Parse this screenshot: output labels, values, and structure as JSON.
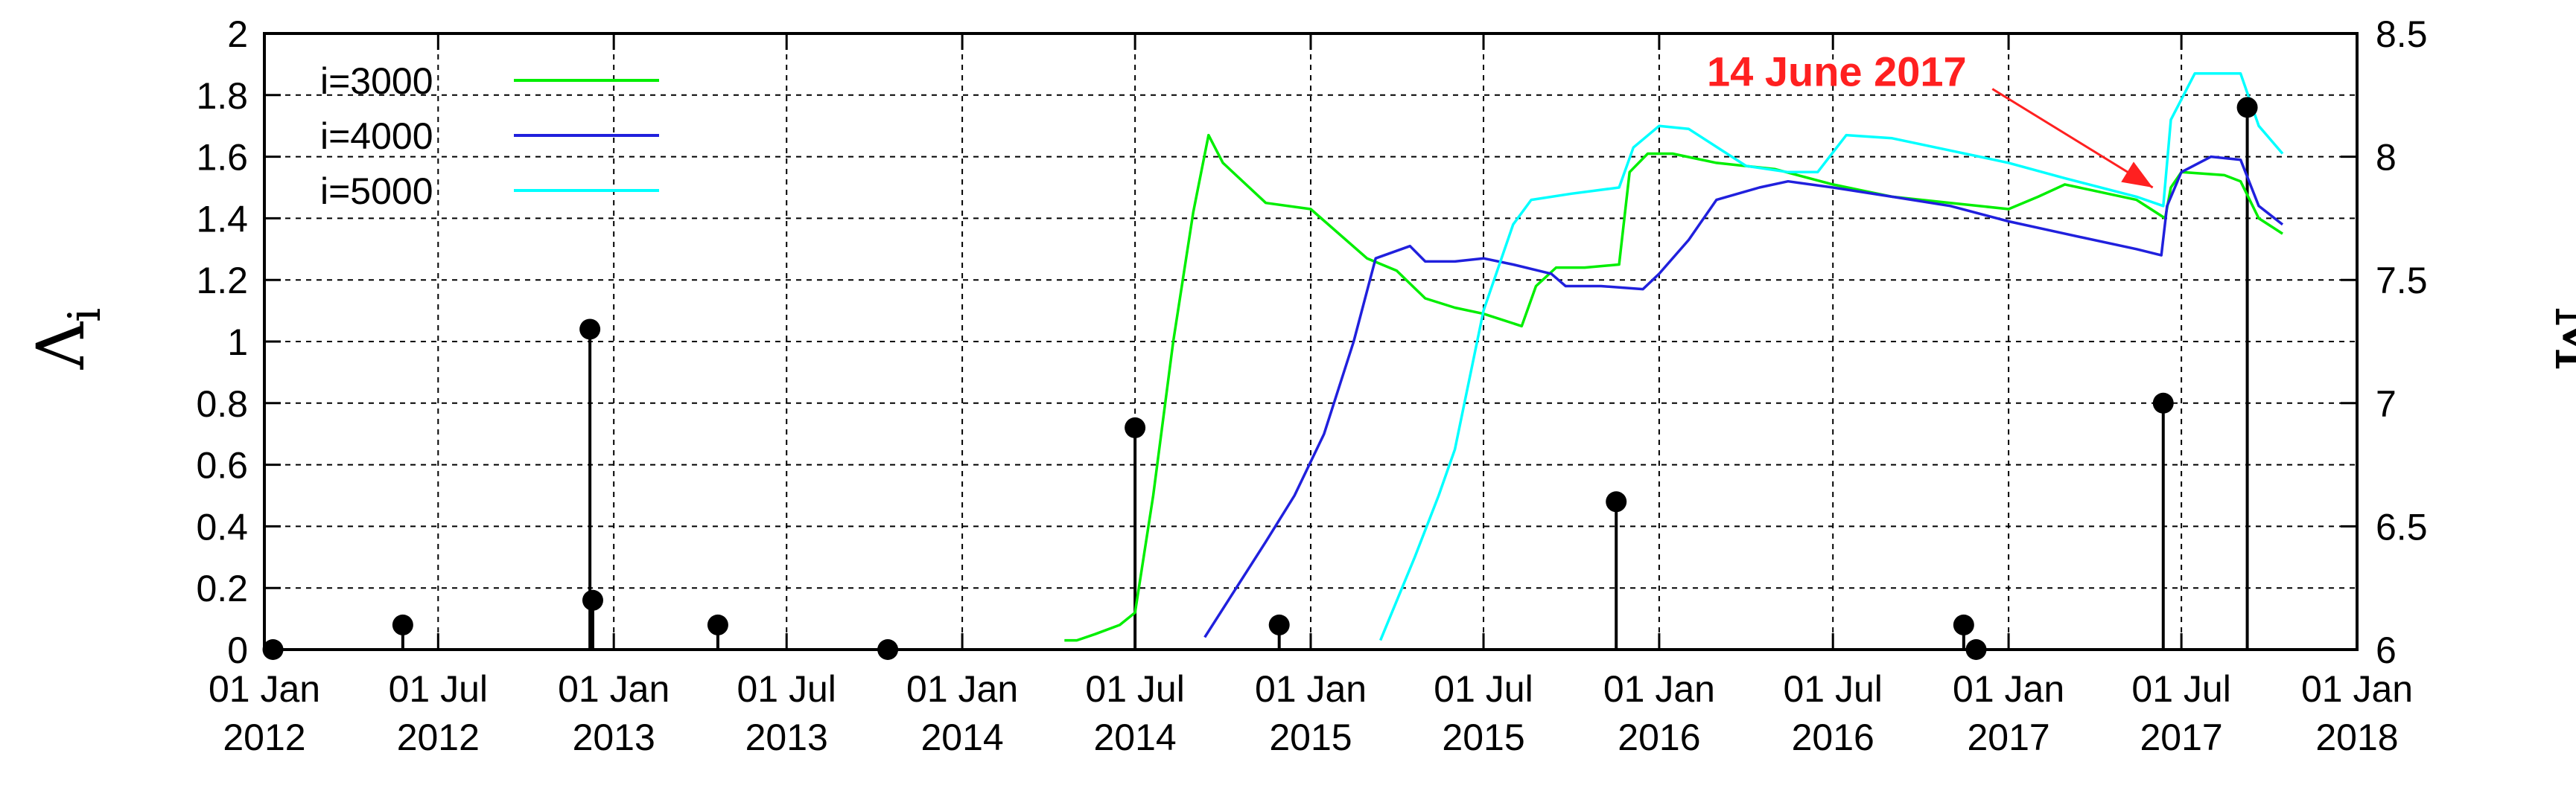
{
  "chart_data": {
    "type": "line",
    "left_axis": {
      "label_main": "Λ",
      "label_sub": "i",
      "range": [
        0,
        2
      ],
      "ticks": [
        "0",
        "0.2",
        "0.4",
        "0.6",
        "0.8",
        "1",
        "1.2",
        "1.4",
        "1.6",
        "1.8",
        "2"
      ]
    },
    "right_axis": {
      "label": "M",
      "range": [
        6,
        8.5
      ],
      "ticks": [
        "6",
        "6.5",
        "7",
        "7.5",
        "8",
        "8.5"
      ]
    },
    "x_axis": {
      "range": [
        "2012-01-01",
        "2018-01-01"
      ],
      "ticks": [
        {
          "date": "2012-01-01",
          "line1": "01 Jan",
          "line2": "2012"
        },
        {
          "date": "2012-07-01",
          "line1": "01 Jul",
          "line2": "2012"
        },
        {
          "date": "2013-01-01",
          "line1": "01 Jan",
          "line2": "2013"
        },
        {
          "date": "2013-07-01",
          "line1": "01 Jul",
          "line2": "2013"
        },
        {
          "date": "2014-01-01",
          "line1": "01 Jan",
          "line2": "2014"
        },
        {
          "date": "2014-07-01",
          "line1": "01 Jul",
          "line2": "2014"
        },
        {
          "date": "2015-01-01",
          "line1": "01 Jan",
          "line2": "2015"
        },
        {
          "date": "2015-07-01",
          "line1": "01 Jul",
          "line2": "2015"
        },
        {
          "date": "2016-01-01",
          "line1": "01 Jan",
          "line2": "2016"
        },
        {
          "date": "2016-07-01",
          "line1": "01 Jul",
          "line2": "2016"
        },
        {
          "date": "2017-01-01",
          "line1": "01 Jan",
          "line2": "2017"
        },
        {
          "date": "2017-07-01",
          "line1": "01 Jul",
          "line2": "2017"
        },
        {
          "date": "2018-01-01",
          "line1": "01 Jan",
          "line2": "2018"
        }
      ]
    },
    "grid": true,
    "legend_position": "top-left",
    "series": [
      {
        "name": "i=3000",
        "color": "#00ee00",
        "points": [
          [
            "2014-04-18",
            0.03
          ],
          [
            "2014-05-01",
            0.03
          ],
          [
            "2014-05-20",
            0.05
          ],
          [
            "2014-06-15",
            0.08
          ],
          [
            "2014-07-01",
            0.12
          ],
          [
            "2014-07-20",
            0.5
          ],
          [
            "2014-08-10",
            1.0
          ],
          [
            "2014-08-31",
            1.42
          ],
          [
            "2014-09-16",
            1.67
          ],
          [
            "2014-10-01",
            1.58
          ],
          [
            "2014-11-15",
            1.45
          ],
          [
            "2015-01-01",
            1.43
          ],
          [
            "2015-03-01",
            1.27
          ],
          [
            "2015-04-01",
            1.23
          ],
          [
            "2015-05-01",
            1.14
          ],
          [
            "2015-06-01",
            1.11
          ],
          [
            "2015-07-01",
            1.09
          ],
          [
            "2015-08-10",
            1.05
          ],
          [
            "2015-08-25",
            1.18
          ],
          [
            "2015-09-15",
            1.24
          ],
          [
            "2015-10-15",
            1.24
          ],
          [
            "2015-11-20",
            1.25
          ],
          [
            "2015-12-01",
            1.55
          ],
          [
            "2015-12-20",
            1.61
          ],
          [
            "2016-01-15",
            1.61
          ],
          [
            "2016-03-01",
            1.58
          ],
          [
            "2016-05-01",
            1.56
          ],
          [
            "2016-07-01",
            1.51
          ],
          [
            "2016-09-01",
            1.47
          ],
          [
            "2016-11-01",
            1.45
          ],
          [
            "2017-01-01",
            1.43
          ],
          [
            "2017-02-01",
            1.47
          ],
          [
            "2017-03-01",
            1.51
          ],
          [
            "2017-04-15",
            1.48
          ],
          [
            "2017-05-15",
            1.46
          ],
          [
            "2017-06-14",
            1.4
          ],
          [
            "2017-06-20",
            1.5
          ],
          [
            "2017-07-01",
            1.55
          ],
          [
            "2017-08-15",
            1.54
          ],
          [
            "2017-09-01",
            1.52
          ],
          [
            "2017-09-20",
            1.4
          ],
          [
            "2017-10-15",
            1.35
          ]
        ]
      },
      {
        "name": "i=4000",
        "color": "#2020dd",
        "points": [
          [
            "2014-09-12",
            0.04
          ],
          [
            "2014-10-15",
            0.2
          ],
          [
            "2014-11-15",
            0.35
          ],
          [
            "2014-12-15",
            0.5
          ],
          [
            "2015-01-15",
            0.7
          ],
          [
            "2015-02-15",
            1.0
          ],
          [
            "2015-03-10",
            1.27
          ],
          [
            "2015-04-15",
            1.31
          ],
          [
            "2015-05-01",
            1.26
          ],
          [
            "2015-06-01",
            1.26
          ],
          [
            "2015-07-01",
            1.27
          ],
          [
            "2015-08-01",
            1.25
          ],
          [
            "2015-09-10",
            1.22
          ],
          [
            "2015-09-25",
            1.18
          ],
          [
            "2015-11-01",
            1.18
          ],
          [
            "2015-12-15",
            1.17
          ],
          [
            "2016-01-01",
            1.22
          ],
          [
            "2016-02-01",
            1.33
          ],
          [
            "2016-03-01",
            1.46
          ],
          [
            "2016-04-15",
            1.5
          ],
          [
            "2016-05-15",
            1.52
          ],
          [
            "2016-07-01",
            1.5
          ],
          [
            "2016-09-01",
            1.47
          ],
          [
            "2016-11-01",
            1.44
          ],
          [
            "2017-01-01",
            1.39
          ],
          [
            "2017-03-01",
            1.35
          ],
          [
            "2017-05-15",
            1.3
          ],
          [
            "2017-06-10",
            1.28
          ],
          [
            "2017-06-16",
            1.44
          ],
          [
            "2017-07-01",
            1.55
          ],
          [
            "2017-08-01",
            1.6
          ],
          [
            "2017-09-01",
            1.59
          ],
          [
            "2017-09-20",
            1.44
          ],
          [
            "2017-10-15",
            1.38
          ]
        ]
      },
      {
        "name": "i=5000",
        "color": "#00ffff",
        "points": [
          [
            "2015-03-15",
            0.03
          ],
          [
            "2015-04-20",
            0.3
          ],
          [
            "2015-05-15",
            0.5
          ],
          [
            "2015-06-01",
            0.65
          ],
          [
            "2015-07-01",
            1.1
          ],
          [
            "2015-08-01",
            1.38
          ],
          [
            "2015-08-20",
            1.46
          ],
          [
            "2015-10-01",
            1.48
          ],
          [
            "2015-11-20",
            1.5
          ],
          [
            "2015-12-05",
            1.63
          ],
          [
            "2016-01-01",
            1.7
          ],
          [
            "2016-02-01",
            1.69
          ],
          [
            "2016-04-01",
            1.57
          ],
          [
            "2016-05-15",
            1.55
          ],
          [
            "2016-06-15",
            1.55
          ],
          [
            "2016-07-15",
            1.67
          ],
          [
            "2016-09-01",
            1.66
          ],
          [
            "2016-11-01",
            1.62
          ],
          [
            "2017-01-01",
            1.58
          ],
          [
            "2017-03-01",
            1.53
          ],
          [
            "2017-05-15",
            1.47
          ],
          [
            "2017-06-12",
            1.44
          ],
          [
            "2017-06-20",
            1.72
          ],
          [
            "2017-07-15",
            1.87
          ],
          [
            "2017-09-01",
            1.87
          ],
          [
            "2017-09-20",
            1.7
          ],
          [
            "2017-10-15",
            1.61
          ]
        ]
      }
    ],
    "earthquakes": [
      {
        "date": "2012-01-10",
        "magnitude": 6.0
      },
      {
        "date": "2012-05-25",
        "magnitude": 6.1
      },
      {
        "date": "2012-12-07",
        "magnitude": 7.3
      },
      {
        "date": "2012-12-10",
        "magnitude": 6.2
      },
      {
        "date": "2013-04-20",
        "magnitude": 6.1
      },
      {
        "date": "2013-10-15",
        "magnitude": 6.0
      },
      {
        "date": "2014-07-01",
        "magnitude": 6.9
      },
      {
        "date": "2014-11-29",
        "magnitude": 6.1
      },
      {
        "date": "2015-11-17",
        "magnitude": 6.6
      },
      {
        "date": "2016-11-15",
        "magnitude": 6.1
      },
      {
        "date": "2016-11-28",
        "magnitude": 6.0
      },
      {
        "date": "2017-06-12",
        "magnitude": 7.0
      },
      {
        "date": "2017-09-08",
        "magnitude": 8.2
      }
    ],
    "annotation": {
      "text": "14 June 2017",
      "color": "#ff2020",
      "text_date": "2016-02-20",
      "text_value": 1.83,
      "arrow_from_date": "2016-12-15",
      "arrow_from_value": 1.82,
      "arrow_to_date": "2017-06-01",
      "arrow_to_value": 1.5
    }
  }
}
